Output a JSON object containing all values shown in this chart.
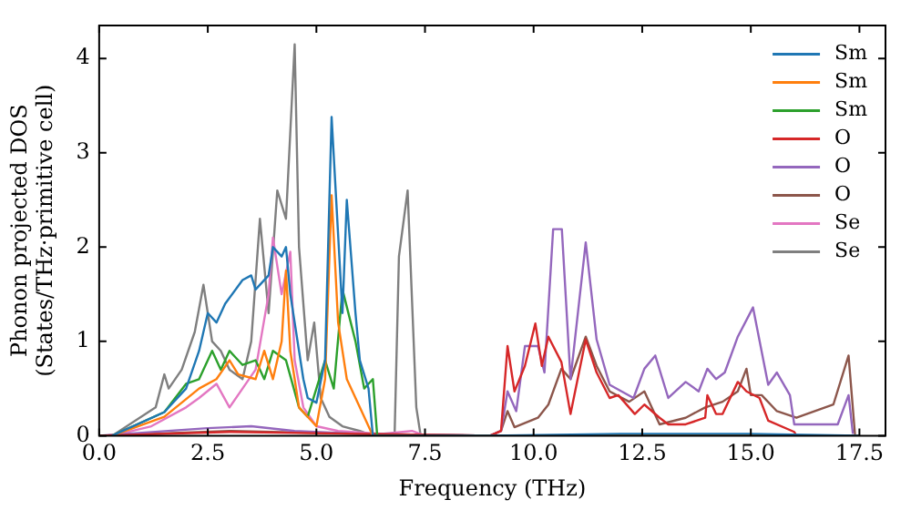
{
  "chart_data": {
    "type": "line",
    "xlabel": "Frequency (THz)",
    "ylabel": "Phonon projected DOS\n(States/THz·primitive cell)",
    "xlim": [
      0,
      18.1
    ],
    "ylim": [
      0,
      4.35
    ],
    "xticks": [
      {
        "value": 0,
        "label": "0.0"
      },
      {
        "value": 2.5,
        "label": "2.5"
      },
      {
        "value": 5,
        "label": "5.0"
      },
      {
        "value": 7.5,
        "label": "7.5"
      },
      {
        "value": 10,
        "label": "10.0"
      },
      {
        "value": 12.5,
        "label": "12.5"
      },
      {
        "value": 15,
        "label": "15.0"
      },
      {
        "value": 17.5,
        "label": "17.5"
      }
    ],
    "yticks": [
      0,
      1,
      2,
      3,
      4
    ],
    "grid": false,
    "legend": "top right",
    "marker": "none",
    "line_style": "solid",
    "series": [
      {
        "name": "Sm",
        "color": "#1f77b4",
        "x": [
          0.3,
          1.5,
          2.0,
          2.3,
          2.5,
          2.7,
          2.9,
          3.3,
          3.5,
          3.6,
          3.9,
          4.0,
          4.2,
          4.3,
          4.4,
          4.6,
          4.7,
          4.8,
          5.0,
          5.2,
          5.35,
          5.6,
          5.7,
          5.9,
          6.0,
          6.2,
          6.3,
          9.0,
          12.0,
          15.0,
          17.5
        ],
        "values": [
          0,
          0.25,
          0.5,
          0.9,
          1.3,
          1.2,
          1.4,
          1.65,
          1.7,
          1.55,
          1.7,
          2.0,
          1.9,
          2.0,
          1.5,
          0.9,
          0.6,
          0.4,
          0.35,
          0.8,
          3.38,
          1.3,
          2.5,
          1.3,
          0.8,
          0.5,
          0,
          0,
          0.02,
          0.02,
          0
        ]
      },
      {
        "name": "Sm",
        "color": "#ff7f0e",
        "x": [
          0.3,
          1.5,
          2.3,
          2.7,
          3.0,
          3.2,
          3.6,
          3.8,
          4.0,
          4.2,
          4.3,
          4.4,
          4.6,
          4.8,
          5.0,
          5.2,
          5.35,
          5.5,
          5.7,
          6.0,
          6.2,
          6.3,
          17.5
        ],
        "values": [
          0,
          0.2,
          0.5,
          0.6,
          0.8,
          0.65,
          0.6,
          0.9,
          0.6,
          1.0,
          1.75,
          0.9,
          0.3,
          0.2,
          0.1,
          0.6,
          2.55,
          1.2,
          0.6,
          0.3,
          0.1,
          0,
          0
        ]
      },
      {
        "name": "Sm",
        "color": "#2ca02c",
        "x": [
          0.3,
          1.5,
          2.0,
          2.3,
          2.6,
          2.8,
          3.0,
          3.3,
          3.6,
          3.8,
          4.0,
          4.3,
          4.6,
          4.8,
          5.0,
          5.2,
          5.4,
          5.6,
          5.9,
          6.1,
          6.3,
          6.4,
          17.5
        ],
        "values": [
          0,
          0.25,
          0.55,
          0.6,
          0.9,
          0.7,
          0.9,
          0.75,
          0.8,
          0.6,
          0.9,
          0.8,
          0.3,
          0.2,
          0.5,
          0.8,
          0.5,
          1.55,
          1.0,
          0.5,
          0.6,
          0,
          0
        ]
      },
      {
        "name": "O",
        "color": "#d62728",
        "x": [
          0,
          3.0,
          6.0,
          9.0,
          9.25,
          9.4,
          9.56,
          9.8,
          10.04,
          10.19,
          10.34,
          10.64,
          10.85,
          11.2,
          11.45,
          11.75,
          11.95,
          12.33,
          12.55,
          12.9,
          13.1,
          13.5,
          13.95,
          14.0,
          14.2,
          14.35,
          14.7,
          14.9,
          15.2,
          15.4,
          16.0,
          16.05,
          17.5
        ],
        "values": [
          0,
          0.04,
          0.02,
          0,
          0.05,
          0.95,
          0.47,
          0.74,
          1.19,
          0.74,
          1.05,
          0.78,
          0.23,
          1.02,
          0.67,
          0.4,
          0.43,
          0.23,
          0.33,
          0.19,
          0.12,
          0.12,
          0.19,
          0.43,
          0.23,
          0.23,
          0.57,
          0.47,
          0.4,
          0.16,
          0.04,
          0,
          0
        ]
      },
      {
        "name": "O",
        "color": "#9467bd",
        "x": [
          0,
          2.5,
          3.5,
          4.5,
          6.0,
          9.0,
          9.25,
          9.4,
          9.6,
          9.8,
          10.1,
          10.25,
          10.45,
          10.65,
          10.85,
          11.2,
          11.45,
          11.75,
          12.3,
          12.55,
          12.8,
          13.1,
          13.5,
          13.8,
          14.0,
          14.2,
          14.4,
          14.7,
          15.05,
          15.4,
          15.6,
          15.9,
          16.0,
          17.0,
          17.25,
          17.35
        ],
        "values": [
          0,
          0.08,
          0.1,
          0.05,
          0.02,
          0,
          0.05,
          0.47,
          0.26,
          0.95,
          0.95,
          0.67,
          2.19,
          2.19,
          0.6,
          2.05,
          1.02,
          0.54,
          0.4,
          0.71,
          0.85,
          0.4,
          0.57,
          0.47,
          0.71,
          0.6,
          0.67,
          1.05,
          1.36,
          0.54,
          0.67,
          0.43,
          0.12,
          0.12,
          0.43,
          0.02
        ]
      },
      {
        "name": "O",
        "color": "#8c564b",
        "x": [
          0,
          3.0,
          6.0,
          9.0,
          9.25,
          9.4,
          9.56,
          10.1,
          10.34,
          10.64,
          10.85,
          11.2,
          11.45,
          11.75,
          12.2,
          12.55,
          12.9,
          13.5,
          13.95,
          14.35,
          14.7,
          14.9,
          15.0,
          15.25,
          15.6,
          16.05,
          16.9,
          17.25,
          17.4
        ],
        "values": [
          0,
          0.05,
          0.02,
          0,
          0.05,
          0.26,
          0.09,
          0.19,
          0.33,
          0.71,
          0.6,
          1.05,
          0.74,
          0.47,
          0.36,
          0.47,
          0.12,
          0.19,
          0.3,
          0.36,
          0.47,
          0.71,
          0.43,
          0.43,
          0.26,
          0.19,
          0.33,
          0.85,
          0
        ]
      },
      {
        "name": "Se",
        "color": "#e377c2",
        "x": [
          0.3,
          1.2,
          2.0,
          2.3,
          2.7,
          3.0,
          3.3,
          3.6,
          3.9,
          4.0,
          4.2,
          4.4,
          4.5,
          4.7,
          5.0,
          5.5,
          6.5,
          7.2,
          7.5,
          17.5
        ],
        "values": [
          0,
          0.1,
          0.3,
          0.4,
          0.55,
          0.3,
          0.5,
          0.7,
          1.5,
          2.1,
          1.5,
          1.95,
          0.8,
          0.3,
          0.1,
          0.05,
          0.02,
          0.05,
          0,
          0
        ]
      },
      {
        "name": "Se",
        "color": "#7f7f7f",
        "x": [
          0.3,
          1.3,
          1.5,
          1.6,
          1.9,
          2.2,
          2.4,
          2.6,
          2.8,
          3.0,
          3.3,
          3.5,
          3.7,
          3.9,
          4.1,
          4.3,
          4.5,
          4.6,
          4.8,
          4.95,
          5.1,
          5.3,
          5.6,
          6.0,
          6.3,
          6.8,
          6.9,
          7.1,
          7.3,
          7.4,
          17.5
        ],
        "values": [
          0,
          0.3,
          0.65,
          0.5,
          0.7,
          1.1,
          1.6,
          1.0,
          0.9,
          0.7,
          0.6,
          1.0,
          2.3,
          1.3,
          2.6,
          2.3,
          4.15,
          2.0,
          0.8,
          1.2,
          0.4,
          0.2,
          0.1,
          0.05,
          0,
          0,
          1.9,
          2.6,
          0.3,
          0,
          0
        ]
      }
    ]
  }
}
